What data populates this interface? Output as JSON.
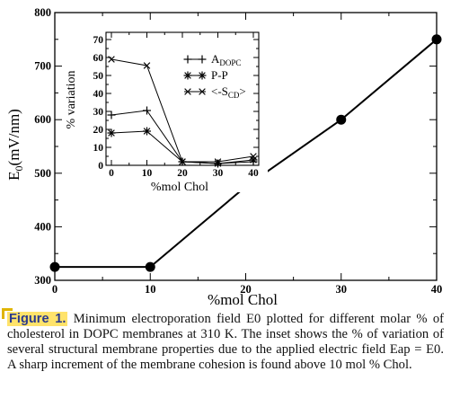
{
  "chart_data": [
    {
      "type": "line",
      "xlabel": "%mol Chol",
      "ylabel_main": "E",
      "ylabel_sub": "0",
      "ylabel_units": "(mV/nm)",
      "xlim": [
        0,
        40
      ],
      "ylim": [
        300,
        800
      ],
      "x_ticks": [
        "0",
        "10",
        "20",
        "30",
        "40"
      ],
      "y_ticks": [
        "300",
        "400",
        "500",
        "600",
        "700",
        "800"
      ],
      "x": [
        0,
        10,
        20,
        30,
        40
      ],
      "series": [
        {
          "values": [
            325,
            325,
            475,
            600,
            750
          ]
        }
      ]
    },
    {
      "type": "line",
      "xlabel": "%mol Chol",
      "ylabel": "% variation",
      "xlim": [
        0,
        40
      ],
      "ylim": [
        0,
        70
      ],
      "x_ticks": [
        "0",
        "10",
        "20",
        "30",
        "40"
      ],
      "y_ticks": [
        "0",
        "10",
        "20",
        "30",
        "40",
        "50",
        "60",
        "70"
      ],
      "x": [
        0,
        10,
        20,
        30,
        40
      ],
      "series": [
        {
          "name": "A",
          "name_sub": "DOPC",
          "marker": "plus",
          "values": [
            28,
            30.5,
            2,
            1,
            2
          ]
        },
        {
          "name": "P-P",
          "marker": "star",
          "values": [
            18,
            19,
            2,
            1,
            3
          ]
        },
        {
          "name": "<-S",
          "name_sub": "CD",
          "name_suffix": ">",
          "marker": "cross",
          "values": [
            59,
            55.5,
            2,
            2,
            5
          ]
        }
      ],
      "legend_position": "top-right"
    }
  ],
  "caption": {
    "label": "Figure 1.",
    "text": " Minimum electroporation field E0 plotted for different molar % of cholesterol in DOPC membranes at 310 K. The inset shows the % of variation of several structural membrane properties due to the applied electric field Eap = E0. A sharp increment of the membrane cohesion is found above 10 mol % Chol."
  }
}
